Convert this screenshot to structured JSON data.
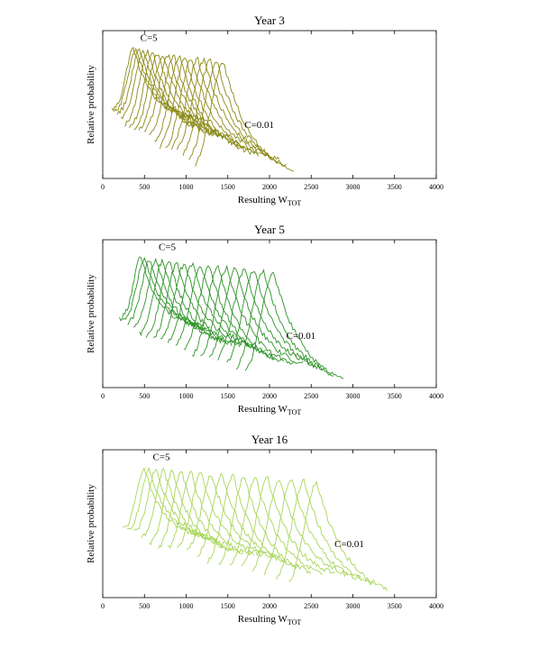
{
  "chart_data": [
    {
      "type": "line",
      "title": "Year 3",
      "xlabel": "Resulting W",
      "xlabel_sub": "TOT",
      "ylabel": "Relative probability",
      "xlim": [
        0,
        4000
      ],
      "xticks": [
        0,
        500,
        1000,
        1500,
        2000,
        2500,
        3000,
        3500,
        4000
      ],
      "color": "#8b8a16",
      "n_curves": 18,
      "peak_x_range": [
        370,
        1450
      ],
      "annotations": [
        {
          "text": "C=5",
          "x": 450,
          "y": 0.93
        },
        {
          "text": "C=0.01",
          "x": 1700,
          "y": 0.34
        }
      ]
    },
    {
      "type": "line",
      "title": "Year 5",
      "xlabel": "Resulting W",
      "xlabel_sub": "TOT",
      "ylabel": "Relative probability",
      "xlim": [
        0,
        4000
      ],
      "xticks": [
        0,
        500,
        1000,
        1500,
        2000,
        2500,
        3000,
        3500,
        4000
      ],
      "color": "#2e9327",
      "n_curves": 18,
      "peak_x_range": [
        460,
        2050
      ],
      "annotations": [
        {
          "text": "C=5",
          "x": 670,
          "y": 0.93
        },
        {
          "text": "C=0.01",
          "x": 2200,
          "y": 0.33
        }
      ]
    },
    {
      "type": "line",
      "title": "Year 16",
      "xlabel": "Resulting W",
      "xlabel_sub": "TOT",
      "ylabel": "Relative probability",
      "xlim": [
        0,
        4000
      ],
      "xticks": [
        0,
        500,
        1000,
        1500,
        2000,
        2500,
        3000,
        3500,
        4000
      ],
      "color": "#a8d65a",
      "n_curves": 18,
      "peak_x_range": [
        500,
        2570
      ],
      "annotations": [
        {
          "text": "C=5",
          "x": 600,
          "y": 0.93
        },
        {
          "text": "C=0.01",
          "x": 2780,
          "y": 0.34
        }
      ]
    }
  ]
}
